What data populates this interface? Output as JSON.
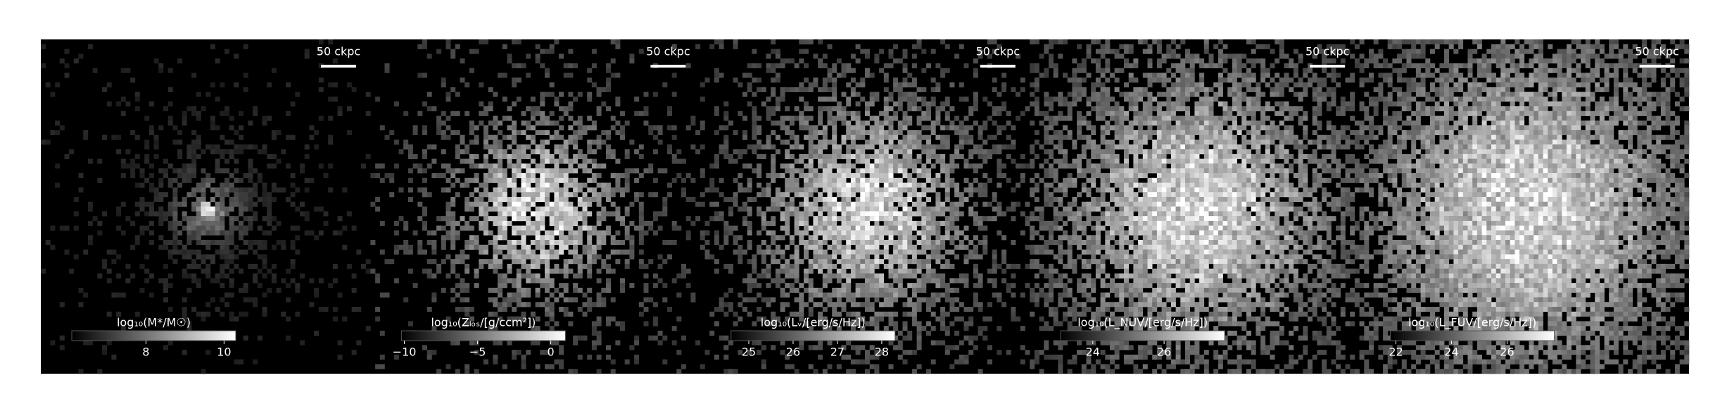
{
  "chart_data": [
    {
      "type": "image",
      "cmap": "gray",
      "scale_bar_label": "50 ckpc",
      "colorbar_label": "log₁₀(M*/M☉)",
      "xlim": [
        6.1,
        10.3
      ],
      "xticks": [
        8,
        10
      ]
    },
    {
      "type": "image",
      "cmap": "gray",
      "scale_bar_label": "50 ckpc",
      "colorbar_label": "log₁₀(Zₗₒₛ/[g/ccm²])",
      "xlim": [
        -10.2,
        1.0
      ],
      "xticks": [
        {
          "value": -10,
          "label": "−10"
        },
        {
          "value": -5,
          "label": "−5"
        },
        0
      ]
    },
    {
      "type": "image",
      "cmap": "gray",
      "scale_bar_label": "50 ckpc",
      "colorbar_label": "log₁₀(Lᵥ/[erg/s/Hz])",
      "xlim": [
        24.6,
        28.3
      ],
      "xticks": [
        25,
        26,
        27,
        28
      ]
    },
    {
      "type": "image",
      "cmap": "gray",
      "scale_bar_label": "50 ckpc",
      "colorbar_label": "log₁₀(L_NUV/[erg/s/Hz])",
      "xlim": [
        23.1,
        27.7
      ],
      "xticks": [
        24,
        26
      ]
    },
    {
      "type": "image",
      "cmap": "gray",
      "scale_bar_label": "50 ckpc",
      "colorbar_label": "log₁₀(L_FUV/[erg/s/Hz])",
      "xlim": [
        21.8,
        27.7
      ],
      "xticks": [
        22,
        24,
        26
      ]
    }
  ]
}
